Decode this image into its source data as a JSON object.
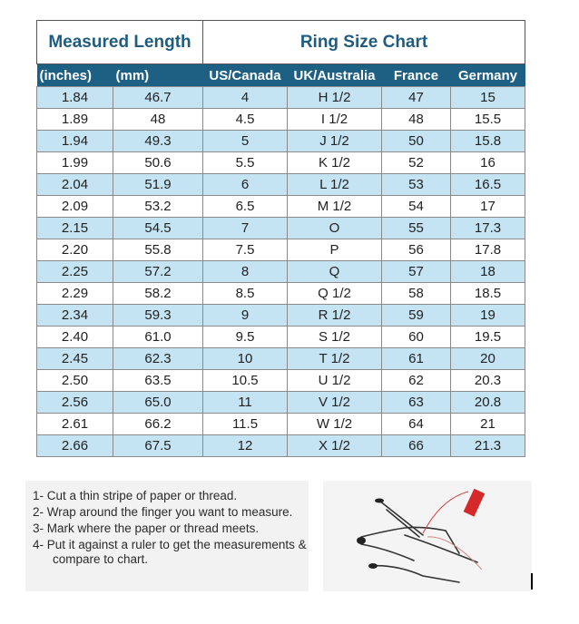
{
  "table": {
    "title_left": "Measured Length",
    "title_right": "Ring Size Chart",
    "headers": [
      "(inches)",
      "(mm)",
      "US/Canada",
      "UK/Australia",
      "France",
      "Germany"
    ],
    "rows": [
      [
        "1.84",
        "46.7",
        "4",
        "H 1/2",
        "47",
        "15"
      ],
      [
        "1.89",
        "48",
        "4.5",
        "I 1/2",
        "48",
        "15.5"
      ],
      [
        "1.94",
        "49.3",
        "5",
        "J 1/2",
        "50",
        "15.8"
      ],
      [
        "1.99",
        "50.6",
        "5.5",
        "K 1/2",
        "52",
        "16"
      ],
      [
        "2.04",
        "51.9",
        "6",
        "L 1/2",
        "53",
        "16.5"
      ],
      [
        "2.09",
        "53.2",
        "6.5",
        "M 1/2",
        "54",
        "17"
      ],
      [
        "2.15",
        "54.5",
        "7",
        "O",
        "55",
        "17.3"
      ],
      [
        "2.20",
        "55.8",
        "7.5",
        "P",
        "56",
        "17.8"
      ],
      [
        "2.25",
        "57.2",
        "8",
        "Q",
        "57",
        "18"
      ],
      [
        "2.29",
        "58.2",
        "8.5",
        "Q 1/2",
        "58",
        "18.5"
      ],
      [
        "2.34",
        "59.3",
        "9",
        "R 1/2",
        "59",
        "19"
      ],
      [
        "2.40",
        "61.0",
        "9.5",
        "S 1/2",
        "60",
        "19.5"
      ],
      [
        "2.45",
        "62.3",
        "10",
        "T 1/2",
        "61",
        "20"
      ],
      [
        "2.50",
        "63.5",
        "10.5",
        "U 1/2",
        "62",
        "20.3"
      ],
      [
        "2.56",
        "65.0",
        "11",
        "V 1/2",
        "63",
        "20.8"
      ],
      [
        "2.61",
        "66.2",
        "11.5",
        "W 1/2",
        "64",
        "21"
      ],
      [
        "2.66",
        "67.5",
        "12",
        "X 1/2",
        "66",
        "21.3"
      ]
    ]
  },
  "instructions": [
    "1-  Cut a thin stripe of paper or thread.",
    "2- Wrap around the finger you want to measure.",
    "3- Mark where the paper or thread meets.",
    "4- Put it against a ruler to get the measurements & compare to chart."
  ],
  "colors": {
    "header_bg": "#1e5f84",
    "title_text": "#1f5c80",
    "alt_row": "#c4e4f4",
    "thread": "#d42a2a"
  }
}
